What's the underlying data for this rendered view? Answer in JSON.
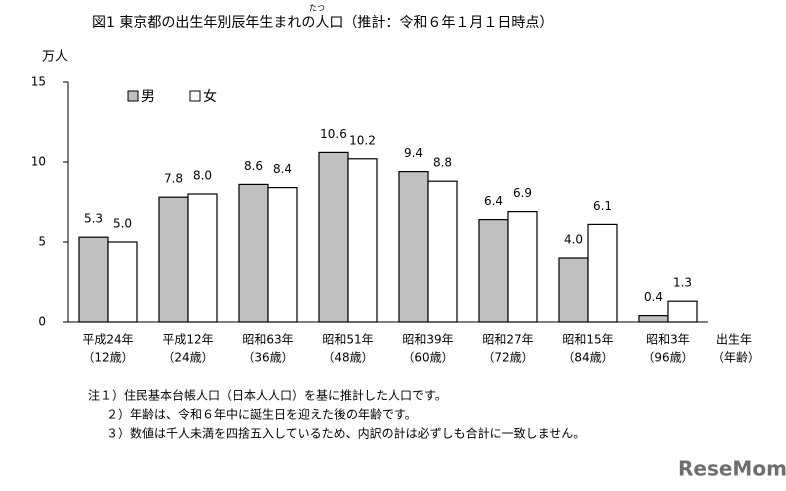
{
  "chart_data": {
    "type": "bar",
    "title": "図1 東京都の出生年別辰年生まれの人口（推計：令和６年１月１日時点）",
    "title_ruby": "たつ",
    "y_label": "万人",
    "x_label": "出生年",
    "x_label_sub": "（年齢）",
    "categories": [
      "平成24年",
      "平成12年",
      "昭和63年",
      "昭和51年",
      "昭和39年",
      "昭和27年",
      "昭和15年",
      "昭和3年"
    ],
    "category_ages": [
      "（12歳）",
      "（24歳）",
      "（36歳）",
      "（48歳）",
      "（60歳）",
      "（72歳）",
      "（84歳）",
      "（96歳）"
    ],
    "series": [
      {
        "name": "男",
        "color": "#c0c0c0",
        "values": [
          5.3,
          7.8,
          8.6,
          10.6,
          9.4,
          6.4,
          4.0,
          0.4
        ],
        "value_labels": [
          "5.3",
          "7.8",
          "8.6",
          "10.6",
          "9.4",
          "6.4",
          "4.0",
          "0.4"
        ]
      },
      {
        "name": "女",
        "color": "#ffffff",
        "values": [
          5.0,
          8.0,
          8.4,
          10.2,
          8.8,
          6.9,
          6.1,
          1.3
        ],
        "value_labels": [
          "5.0",
          "8.0",
          "8.4",
          "10.2",
          "8.8",
          "6.9",
          "6.1",
          "1.3"
        ]
      }
    ],
    "ylim": [
      0,
      15
    ],
    "yticks": [
      0,
      5,
      10,
      15
    ],
    "grid": false,
    "notes": [
      "注１）住民基本台帳人口（日本人人口）を基に推計した人口です。",
      "２）年齢は、令和６年中に誕生日を迎えた後の年齢です。",
      "３）数値は千人未満を四捨五入しているため、内訳の計は必ずしも合計に一致しません。"
    ],
    "watermark": "ReseMom"
  }
}
